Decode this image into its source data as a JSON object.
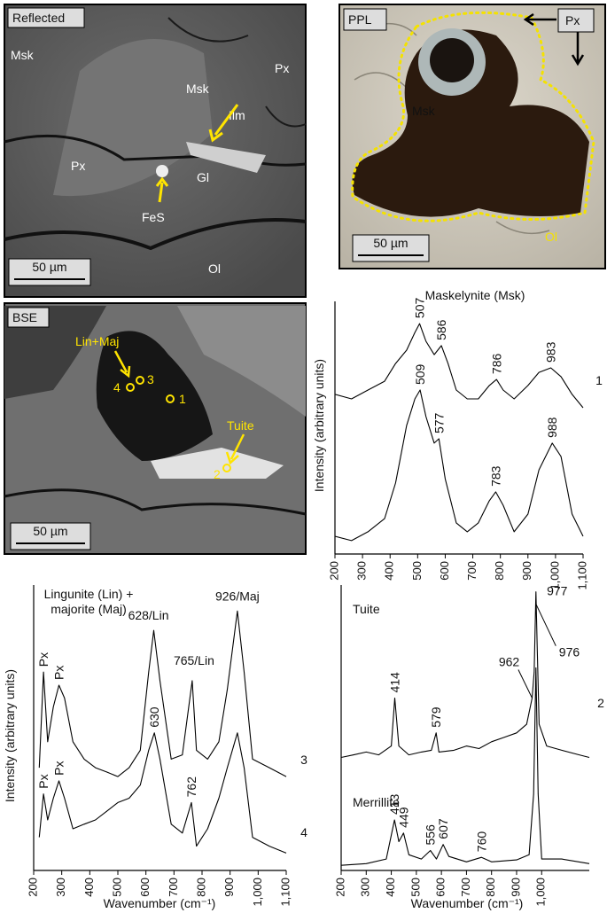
{
  "panels": [
    {
      "title": "Reflected",
      "labels": [
        "Msk",
        "Px",
        "Msk",
        "Ilm",
        "Px",
        "Gl",
        "FeS",
        "Ol"
      ],
      "scale": "50 µm"
    },
    {
      "title": "PPL",
      "labels": [
        "Px",
        "Msk",
        "Ol"
      ],
      "scale": "50 µm"
    },
    {
      "title": "BSE",
      "labels": [
        "Lin+Maj",
        "4",
        "3",
        "1",
        "Tuite",
        "2"
      ],
      "scale": "50 µm"
    }
  ],
  "chart_data": [
    {
      "type": "line",
      "title": "Maskelynite (Msk)",
      "y_label": "Intensity (arbitrary units)",
      "xlim": [
        200,
        1100
      ],
      "ylim": [
        0,
        100
      ],
      "xticks": [
        200,
        300,
        400,
        500,
        600,
        700,
        800,
        900,
        {
          "value": 1000,
          "label": "1,000"
        },
        {
          "value": 1100,
          "label": "1,100"
        }
      ],
      "series": [
        {
          "name": "1",
          "color": "#000000",
          "x": [
            200,
            260,
            320,
            380,
            420,
            460,
            490,
            507,
            530,
            560,
            586,
            610,
            640,
            680,
            720,
            760,
            786,
            810,
            850,
            900,
            940,
            983,
            1020,
            1060,
            1100
          ],
          "values": [
            63.2,
            61.4,
            64.9,
            68.4,
            75.4,
            80.7,
            87.7,
            91.2,
            84.2,
            78.9,
            82.5,
            75.4,
            64.9,
            61.4,
            61.4,
            66.7,
            69.1,
            64.9,
            61.4,
            66.7,
            71.9,
            73.7,
            70.2,
            63.2,
            57.9
          ],
          "peaks": [
            507,
            586,
            786,
            983
          ]
        },
        {
          "name": null,
          "color": "#000000",
          "x": [
            200,
            260,
            320,
            380,
            420,
            460,
            490,
            509,
            530,
            560,
            577,
            600,
            640,
            680,
            720,
            760,
            783,
            810,
            850,
            900,
            940,
            988,
            1020,
            1060,
            1100
          ],
          "values": [
            7.0,
            5.3,
            8.8,
            14.0,
            28.1,
            50.9,
            61.4,
            64.9,
            54.4,
            43.9,
            45.6,
            29.8,
            12.3,
            8.8,
            12.3,
            21.1,
            24.6,
            19.3,
            8.8,
            15.8,
            33.3,
            43.9,
            38.6,
            15.8,
            7.0
          ],
          "peaks": [
            509,
            577,
            783,
            988
          ]
        }
      ]
    },
    {
      "type": "line",
      "title": [
        "Lingunite (Lin) +",
        "majorite (Maj)"
      ],
      "y_label": "Intensity (arbitrary units)",
      "x_label": "Wavenumber (cm⁻¹)",
      "xlim": [
        200,
        1100
      ],
      "ylim": [
        0,
        100
      ],
      "xticks": [
        200,
        300,
        400,
        500,
        600,
        700,
        800,
        900,
        {
          "value": 1000,
          "label": "1,000"
        },
        {
          "value": 1100,
          "label": "1,100"
        }
      ],
      "series": [
        {
          "name": "3",
          "color": "#000000",
          "x": [
            220,
            235,
            250,
            270,
            290,
            310,
            340,
            380,
            420,
            460,
            500,
            540,
            580,
            610,
            628,
            650,
            690,
            730,
            765,
            780,
            820,
            860,
            890,
            926,
            950,
            980,
            1040,
            1100
          ],
          "values": [
            36.0,
            69.5,
            45.1,
            57.3,
            64.9,
            60.4,
            45.1,
            39.0,
            36.0,
            34.5,
            32.9,
            36.0,
            42.1,
            69.5,
            84.1,
            66.5,
            39.0,
            40.5,
            66.5,
            42.1,
            39.0,
            45.1,
            63.4,
            90.9,
            69.5,
            39.0,
            36.0,
            32.9
          ],
          "peaks": [
            {
              "value": 235,
              "label": "Px"
            },
            {
              "value": 290,
              "label": "Px"
            },
            {
              "value": 628,
              "label": "628/Lin"
            },
            {
              "value": 765,
              "label": "765/Lin"
            },
            {
              "value": 926,
              "label": "926/Maj"
            }
          ]
        },
        {
          "name": "4",
          "color": "#000000",
          "x": [
            220,
            235,
            250,
            270,
            290,
            310,
            340,
            380,
            420,
            460,
            500,
            540,
            580,
            610,
            630,
            650,
            690,
            730,
            762,
            780,
            820,
            860,
            890,
            926,
            950,
            980,
            1040,
            1100
          ],
          "values": [
            11.6,
            26.8,
            17.7,
            25.3,
            31.4,
            25.3,
            14.6,
            16.2,
            17.7,
            20.7,
            23.8,
            25.3,
            29.9,
            42.1,
            48.2,
            39.0,
            16.2,
            13.1,
            23.8,
            8.5,
            14.6,
            25.3,
            36.0,
            48.2,
            36.0,
            11.6,
            8.5,
            6.1
          ],
          "peaks": [
            {
              "value": 235,
              "label": "Px"
            },
            {
              "value": 290,
              "label": "Px"
            },
            630,
            762
          ]
        }
      ]
    },
    {
      "type": "line",
      "x_label": "Wavenumber (cm⁻¹)",
      "annotations": [
        "2"
      ],
      "xlim": [
        200,
        1190
      ],
      "ylim": [
        0,
        100
      ],
      "xticks": [
        200,
        300,
        400,
        500,
        600,
        700,
        800,
        900,
        {
          "value": 1000,
          "label": "1,000"
        }
      ],
      "series": [
        {
          "name": "Tuite",
          "color": "#000000",
          "x": [
            200,
            250,
            300,
            350,
            400,
            414,
            430,
            470,
            520,
            560,
            579,
            590,
            650,
            700,
            750,
            800,
            850,
            900,
            940,
            962,
            970,
            977,
            982,
            990,
            1020,
            1080,
            1150,
            1190
          ],
          "values": [
            39.6,
            40.5,
            41.5,
            40.5,
            43.6,
            60.4,
            43.6,
            40.5,
            41.5,
            42.1,
            48.2,
            41.5,
            42.1,
            43.6,
            42.7,
            45.1,
            46.6,
            48.2,
            51.2,
            60.4,
            69.5,
            97.6,
            78.7,
            51.2,
            43.6,
            42.1,
            40.5,
            39.6
          ],
          "peaks": [
            414,
            579,
            962,
            976,
            977
          ]
        },
        {
          "name": "Merrillite",
          "color": "#000000",
          "x": [
            200,
            300,
            380,
            413,
            430,
            449,
            470,
            520,
            556,
            580,
            607,
            630,
            700,
            760,
            800,
            900,
            950,
            968,
            977,
            986,
            1000,
            1080,
            1190
          ],
          "values": [
            1.8,
            2.4,
            4.0,
            17.7,
            10.1,
            13.1,
            5.5,
            4.0,
            7.0,
            4.0,
            9.1,
            4.9,
            3.0,
            4.6,
            3.0,
            3.7,
            5.5,
            26.8,
            71.0,
            26.8,
            4.0,
            4.0,
            2.4
          ],
          "peaks": [
            413,
            449,
            556,
            607,
            760
          ]
        }
      ]
    }
  ]
}
